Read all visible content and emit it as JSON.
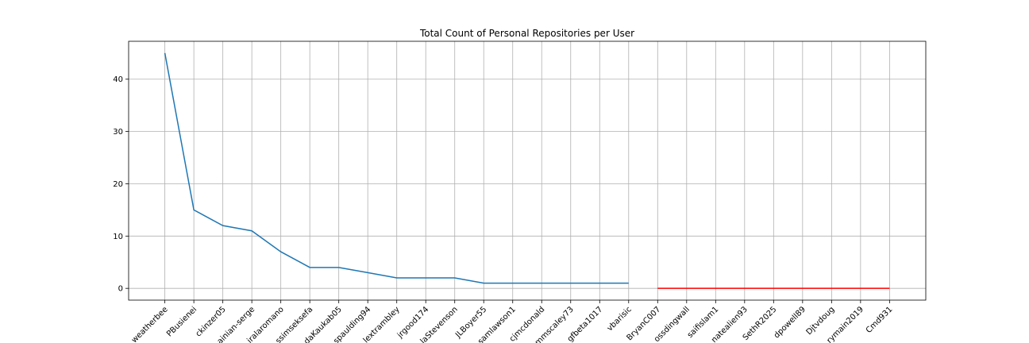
{
  "chart_data": {
    "type": "line",
    "title": "Total Count of Personal Repositories per User",
    "categories": [
      "weatherbee",
      "PBusienei",
      "ckinzer05",
      "ainian-serge",
      "iralaromano",
      "ssimseksefa",
      "daKaukab05",
      "spaulding94",
      "lextrambley",
      "jrgood174",
      "laStevenson",
      "JLBoyer55",
      "samlawson1",
      "cjmcdonald",
      "mmscaley73",
      "gfbeta1017",
      "vbarisic",
      "BryanC007",
      "ossdingwall",
      "saifislam1",
      "natealien93",
      "SethR2025",
      "dpowell89",
      "Djtvdoug",
      "rymain2019",
      "Cmd931"
    ],
    "series": [
      {
        "color": "#1f77b4",
        "values": [
          45,
          15,
          12,
          11,
          7,
          4,
          4,
          3,
          2,
          2,
          2,
          1,
          1,
          1,
          1,
          1,
          1,
          null,
          null,
          null,
          null,
          null,
          null,
          null,
          null,
          null
        ]
      },
      {
        "color": "#ff0000",
        "values": [
          null,
          null,
          null,
          null,
          null,
          null,
          null,
          null,
          null,
          null,
          null,
          null,
          null,
          null,
          null,
          null,
          null,
          0,
          0,
          0,
          0,
          0,
          0,
          0,
          0,
          0
        ]
      }
    ],
    "ylim": [
      -2.25,
      47.25
    ],
    "yticks": [
      0,
      10,
      20,
      30,
      40
    ],
    "grid": true
  }
}
